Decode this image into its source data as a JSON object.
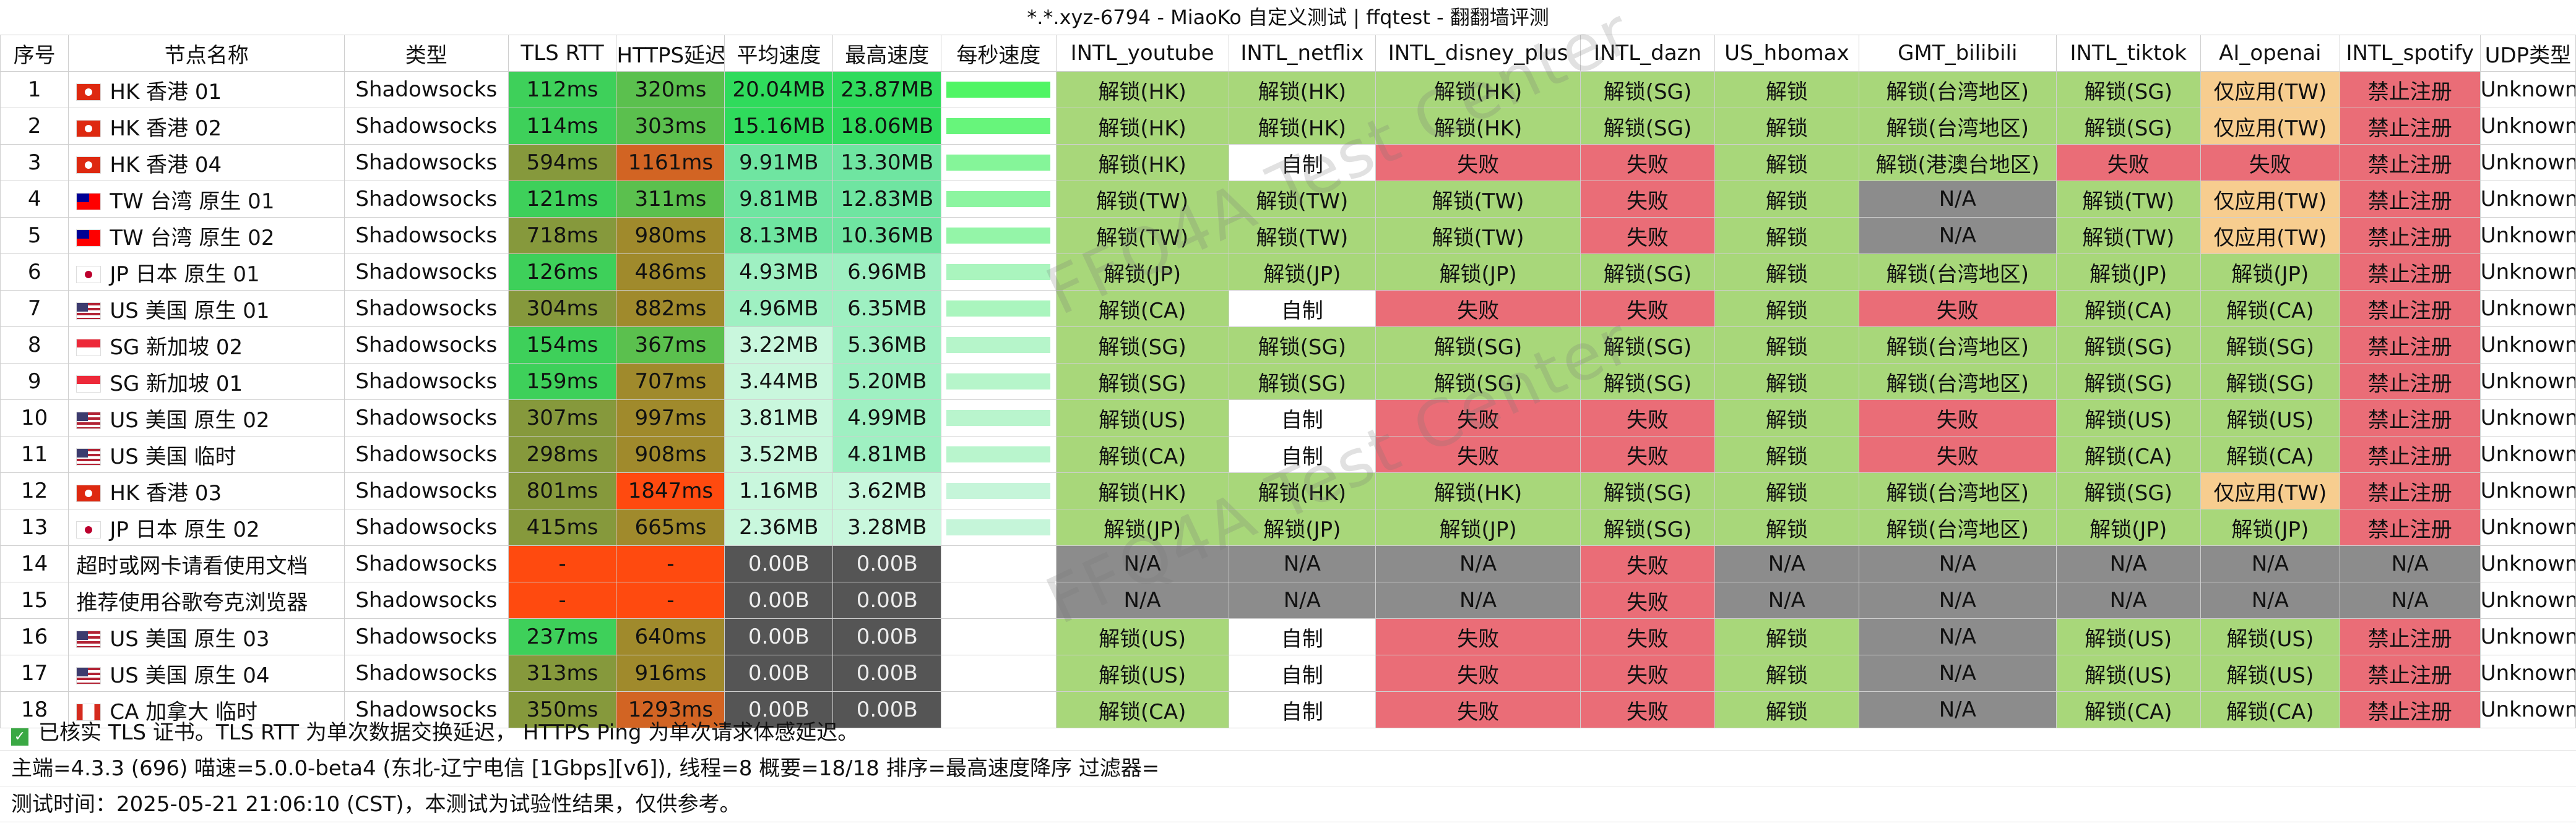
{
  "title": "*.*.xyz-6794 - MiaoKo 自定义测试 | ffqtest - 翻翻墙评测",
  "watermark": "FFQ4A Test Center",
  "columns": [
    "序号",
    "节点名称",
    "类型",
    "TLS RTT",
    "HTTPS延迟",
    "平均速度",
    "最高速度",
    "每秒速度",
    "INTL_youtube",
    "INTL_netflix",
    "INTL_disney_plus",
    "INTL_dazn",
    "US_hbomax",
    "GMT_bilibili",
    "INTL_tiktok",
    "AI_openai",
    "INTL_spotify",
    "UDP类型"
  ],
  "colors": {
    "unlock": "#a8d77a",
    "self_made": "#ffffff",
    "fail": "#ea6d77",
    "na": "#8c8c8c",
    "app_only": "#f7cd8f",
    "forbidden": "#ea6d77",
    "timeout": "#ff4a0f",
    "zero": "#555555",
    "speed_mid": "#6fe5a1",
    "speed_low": "#c9f7dd",
    "tls_good": "#3ed05a",
    "tls_mid": "#86993c",
    "https_good": "#5bc04e",
    "https_mid": "#a08a2c",
    "https_bad": "#d26423",
    "https_worse": "#ff4a0f"
  },
  "rows": [
    {
      "idx": "1",
      "flag": "hk",
      "name": "HK 香港 01",
      "type": "Shadowsocks",
      "tls": "112ms",
      "https": "320ms",
      "avg": "20.04MB",
      "max": "23.87MB",
      "spark": 0.9,
      "cells": [
        "解锁(HK)",
        "解锁(HK)",
        "解锁(HK)",
        "解锁(SG)",
        "解锁",
        "解锁(台湾地区)",
        "解锁(SG)",
        "仅应用(TW)",
        "禁止注册"
      ],
      "udp": "Unknown"
    },
    {
      "idx": "2",
      "flag": "hk",
      "name": "HK 香港 02",
      "type": "Shadowsocks",
      "tls": "114ms",
      "https": "303ms",
      "avg": "15.16MB",
      "max": "18.06MB",
      "spark": 0.75,
      "cells": [
        "解锁(HK)",
        "解锁(HK)",
        "解锁(HK)",
        "解锁(SG)",
        "解锁",
        "解锁(台湾地区)",
        "解锁(SG)",
        "仅应用(TW)",
        "禁止注册"
      ],
      "udp": "Unknown"
    },
    {
      "idx": "3",
      "flag": "hk",
      "name": "HK 香港 04",
      "type": "Shadowsocks",
      "tls": "594ms",
      "https": "1161ms",
      "avg": "9.91MB",
      "max": "13.30MB",
      "spark": 0.55,
      "cells": [
        "解锁(HK)",
        "自制",
        "失败",
        "失败",
        "解锁",
        "解锁(港澳台地区)",
        "失败",
        "失败",
        "禁止注册"
      ],
      "udp": "Unknown"
    },
    {
      "idx": "4",
      "flag": "tw",
      "name": "TW 台湾 原生 01",
      "type": "Shadowsocks",
      "tls": "121ms",
      "https": "311ms",
      "avg": "9.81MB",
      "max": "12.83MB",
      "spark": 0.5,
      "cells": [
        "解锁(TW)",
        "解锁(TW)",
        "解锁(TW)",
        "失败",
        "解锁",
        "N/A",
        "解锁(TW)",
        "仅应用(TW)",
        "禁止注册"
      ],
      "udp": "Unknown"
    },
    {
      "idx": "5",
      "flag": "tw",
      "name": "TW 台湾 原生 02",
      "type": "Shadowsocks",
      "tls": "718ms",
      "https": "980ms",
      "avg": "8.13MB",
      "max": "10.36MB",
      "spark": 0.45,
      "cells": [
        "解锁(TW)",
        "解锁(TW)",
        "解锁(TW)",
        "失败",
        "解锁",
        "N/A",
        "解锁(TW)",
        "仅应用(TW)",
        "禁止注册"
      ],
      "udp": "Unknown"
    },
    {
      "idx": "6",
      "flag": "jp",
      "name": "JP 日本 原生 01",
      "type": "Shadowsocks",
      "tls": "126ms",
      "https": "486ms",
      "avg": "4.93MB",
      "max": "6.96MB",
      "spark": 0.3,
      "cells": [
        "解锁(JP)",
        "解锁(JP)",
        "解锁(JP)",
        "解锁(SG)",
        "解锁",
        "解锁(台湾地区)",
        "解锁(JP)",
        "解锁(JP)",
        "禁止注册"
      ],
      "udp": "Unknown"
    },
    {
      "idx": "7",
      "flag": "us",
      "name": "US 美国 原生 01",
      "type": "Shadowsocks",
      "tls": "304ms",
      "https": "882ms",
      "avg": "4.96MB",
      "max": "6.35MB",
      "spark": 0.3,
      "cells": [
        "解锁(CA)",
        "自制",
        "失败",
        "失败",
        "解锁",
        "失败",
        "解锁(CA)",
        "解锁(CA)",
        "禁止注册"
      ],
      "udp": "Unknown"
    },
    {
      "idx": "8",
      "flag": "sg",
      "name": "SG 新加坡 02",
      "type": "Shadowsocks",
      "tls": "154ms",
      "https": "367ms",
      "avg": "3.22MB",
      "max": "5.36MB",
      "spark": 0.22,
      "cells": [
        "解锁(SG)",
        "解锁(SG)",
        "解锁(SG)",
        "解锁(SG)",
        "解锁",
        "解锁(台湾地区)",
        "解锁(SG)",
        "解锁(SG)",
        "禁止注册"
      ],
      "udp": "Unknown"
    },
    {
      "idx": "9",
      "flag": "sg",
      "name": "SG 新加坡 01",
      "type": "Shadowsocks",
      "tls": "159ms",
      "https": "707ms",
      "avg": "3.44MB",
      "max": "5.20MB",
      "spark": 0.22,
      "cells": [
        "解锁(SG)",
        "解锁(SG)",
        "解锁(SG)",
        "解锁(SG)",
        "解锁",
        "解锁(台湾地区)",
        "解锁(SG)",
        "解锁(SG)",
        "禁止注册"
      ],
      "udp": "Unknown"
    },
    {
      "idx": "10",
      "flag": "us",
      "name": "US 美国 原生 02",
      "type": "Shadowsocks",
      "tls": "307ms",
      "https": "997ms",
      "avg": "3.81MB",
      "max": "4.99MB",
      "spark": 0.2,
      "cells": [
        "解锁(US)",
        "自制",
        "失败",
        "失败",
        "解锁",
        "失败",
        "解锁(US)",
        "解锁(US)",
        "禁止注册"
      ],
      "udp": "Unknown"
    },
    {
      "idx": "11",
      "flag": "us",
      "name": "US 美国 临时",
      "type": "Shadowsocks",
      "tls": "298ms",
      "https": "908ms",
      "avg": "3.52MB",
      "max": "4.81MB",
      "spark": 0.2,
      "cells": [
        "解锁(CA)",
        "自制",
        "失败",
        "失败",
        "解锁",
        "失败",
        "解锁(CA)",
        "解锁(CA)",
        "禁止注册"
      ],
      "udp": "Unknown"
    },
    {
      "idx": "12",
      "flag": "hk",
      "name": "HK 香港 03",
      "type": "Shadowsocks",
      "tls": "801ms",
      "https": "1847ms",
      "avg": "1.16MB",
      "max": "3.62MB",
      "spark": 0.12,
      "cells": [
        "解锁(HK)",
        "解锁(HK)",
        "解锁(HK)",
        "解锁(SG)",
        "解锁",
        "解锁(台湾地区)",
        "解锁(SG)",
        "仅应用(TW)",
        "禁止注册"
      ],
      "udp": "Unknown"
    },
    {
      "idx": "13",
      "flag": "jp",
      "name": "JP 日本 原生 02",
      "type": "Shadowsocks",
      "tls": "415ms",
      "https": "665ms",
      "avg": "2.36MB",
      "max": "3.28MB",
      "spark": 0.12,
      "cells": [
        "解锁(JP)",
        "解锁(JP)",
        "解锁(JP)",
        "解锁(SG)",
        "解锁",
        "解锁(台湾地区)",
        "解锁(JP)",
        "解锁(JP)",
        "禁止注册"
      ],
      "udp": "Unknown"
    },
    {
      "idx": "14",
      "flag": "",
      "name": "超时或网卡请看使用文档",
      "type": "Shadowsocks",
      "tls": "-",
      "https": "-",
      "avg": "0.00B",
      "max": "0.00B",
      "spark": 0,
      "cells": [
        "N/A",
        "N/A",
        "N/A",
        "失败",
        "N/A",
        "N/A",
        "N/A",
        "N/A",
        "N/A"
      ],
      "udp": "Unknown"
    },
    {
      "idx": "15",
      "flag": "",
      "name": "推荐使用谷歌夸克浏览器",
      "type": "Shadowsocks",
      "tls": "-",
      "https": "-",
      "avg": "0.00B",
      "max": "0.00B",
      "spark": 0,
      "cells": [
        "N/A",
        "N/A",
        "N/A",
        "失败",
        "N/A",
        "N/A",
        "N/A",
        "N/A",
        "N/A"
      ],
      "udp": "Unknown"
    },
    {
      "idx": "16",
      "flag": "us",
      "name": "US 美国 原生 03",
      "type": "Shadowsocks",
      "tls": "237ms",
      "https": "640ms",
      "avg": "0.00B",
      "max": "0.00B",
      "spark": 0,
      "cells": [
        "解锁(US)",
        "自制",
        "失败",
        "失败",
        "解锁",
        "N/A",
        "解锁(US)",
        "解锁(US)",
        "禁止注册"
      ],
      "udp": "Unknown"
    },
    {
      "idx": "17",
      "flag": "us",
      "name": "US 美国 原生 04",
      "type": "Shadowsocks",
      "tls": "313ms",
      "https": "916ms",
      "avg": "0.00B",
      "max": "0.00B",
      "spark": 0,
      "cells": [
        "解锁(US)",
        "自制",
        "失败",
        "失败",
        "解锁",
        "N/A",
        "解锁(US)",
        "解锁(US)",
        "禁止注册"
      ],
      "udp": "Unknown"
    },
    {
      "idx": "18",
      "flag": "ca",
      "name": "CA 加拿大 临时",
      "type": "Shadowsocks",
      "tls": "350ms",
      "https": "1293ms",
      "avg": "0.00B",
      "max": "0.00B",
      "spark": 0,
      "cells": [
        "解锁(CA)",
        "自制",
        "失败",
        "失败",
        "解锁",
        "N/A",
        "解锁(CA)",
        "解锁(CA)",
        "禁止注册"
      ],
      "udp": "Unknown"
    }
  ],
  "footer": {
    "tls_note": "已核实 TLS 证书。TLS RTT 为单次数据交换延迟， HTTPS Ping 为单次请求体感延迟。",
    "info": "主端=4.3.3 (696) 喵速=5.0.0-beta4 (东北-辽宁电信 [1Gbps][v6]), 线程=8 概要=18/18 排序=最高速度降序 过滤器=",
    "time": "测试时间：2025-05-21 21:06:10 (CST)，本测试为试验性结果，仅供参考。"
  }
}
